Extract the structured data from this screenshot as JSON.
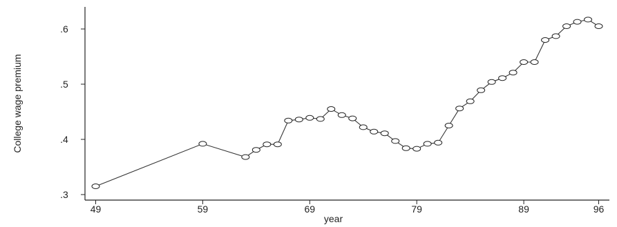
{
  "chart_data": {
    "type": "line",
    "title": "",
    "xlabel": "year",
    "ylabel": "College wage premium",
    "xlim": [
      1948,
      1997
    ],
    "ylim": [
      0.29,
      0.64
    ],
    "x_ticks": [
      1949,
      1959,
      1969,
      1979,
      1989,
      1996
    ],
    "x_tick_labels": [
      "49",
      "59",
      "69",
      "79",
      "89",
      "96"
    ],
    "y_ticks": [
      0.3,
      0.4,
      0.5,
      0.6
    ],
    "y_tick_labels": [
      ".3",
      ".4",
      ".5",
      ".6"
    ],
    "grid": false,
    "legend": "none",
    "series": [
      {
        "values": [
          {
            "x": 1949,
            "y": 0.315
          },
          {
            "x": 1959,
            "y": 0.392
          },
          {
            "x": 1963,
            "y": 0.368
          },
          {
            "x": 1964,
            "y": 0.381
          },
          {
            "x": 1965,
            "y": 0.391
          },
          {
            "x": 1966,
            "y": 0.391
          },
          {
            "x": 1967,
            "y": 0.434
          },
          {
            "x": 1968,
            "y": 0.436
          },
          {
            "x": 1969,
            "y": 0.439
          },
          {
            "x": 1970,
            "y": 0.437
          },
          {
            "x": 1971,
            "y": 0.455
          },
          {
            "x": 1972,
            "y": 0.444
          },
          {
            "x": 1973,
            "y": 0.438
          },
          {
            "x": 1974,
            "y": 0.422
          },
          {
            "x": 1975,
            "y": 0.414
          },
          {
            "x": 1976,
            "y": 0.411
          },
          {
            "x": 1977,
            "y": 0.397
          },
          {
            "x": 1978,
            "y": 0.384
          },
          {
            "x": 1979,
            "y": 0.383
          },
          {
            "x": 1980,
            "y": 0.392
          },
          {
            "x": 1981,
            "y": 0.394
          },
          {
            "x": 1982,
            "y": 0.425
          },
          {
            "x": 1983,
            "y": 0.456
          },
          {
            "x": 1984,
            "y": 0.469
          },
          {
            "x": 1985,
            "y": 0.489
          },
          {
            "x": 1986,
            "y": 0.504
          },
          {
            "x": 1987,
            "y": 0.511
          },
          {
            "x": 1988,
            "y": 0.521
          },
          {
            "x": 1989,
            "y": 0.54
          },
          {
            "x": 1990,
            "y": 0.54
          },
          {
            "x": 1991,
            "y": 0.58
          },
          {
            "x": 1992,
            "y": 0.587
          },
          {
            "x": 1993,
            "y": 0.605
          },
          {
            "x": 1994,
            "y": 0.613
          },
          {
            "x": 1995,
            "y": 0.617
          },
          {
            "x": 1996,
            "y": 0.605
          }
        ]
      }
    ]
  }
}
